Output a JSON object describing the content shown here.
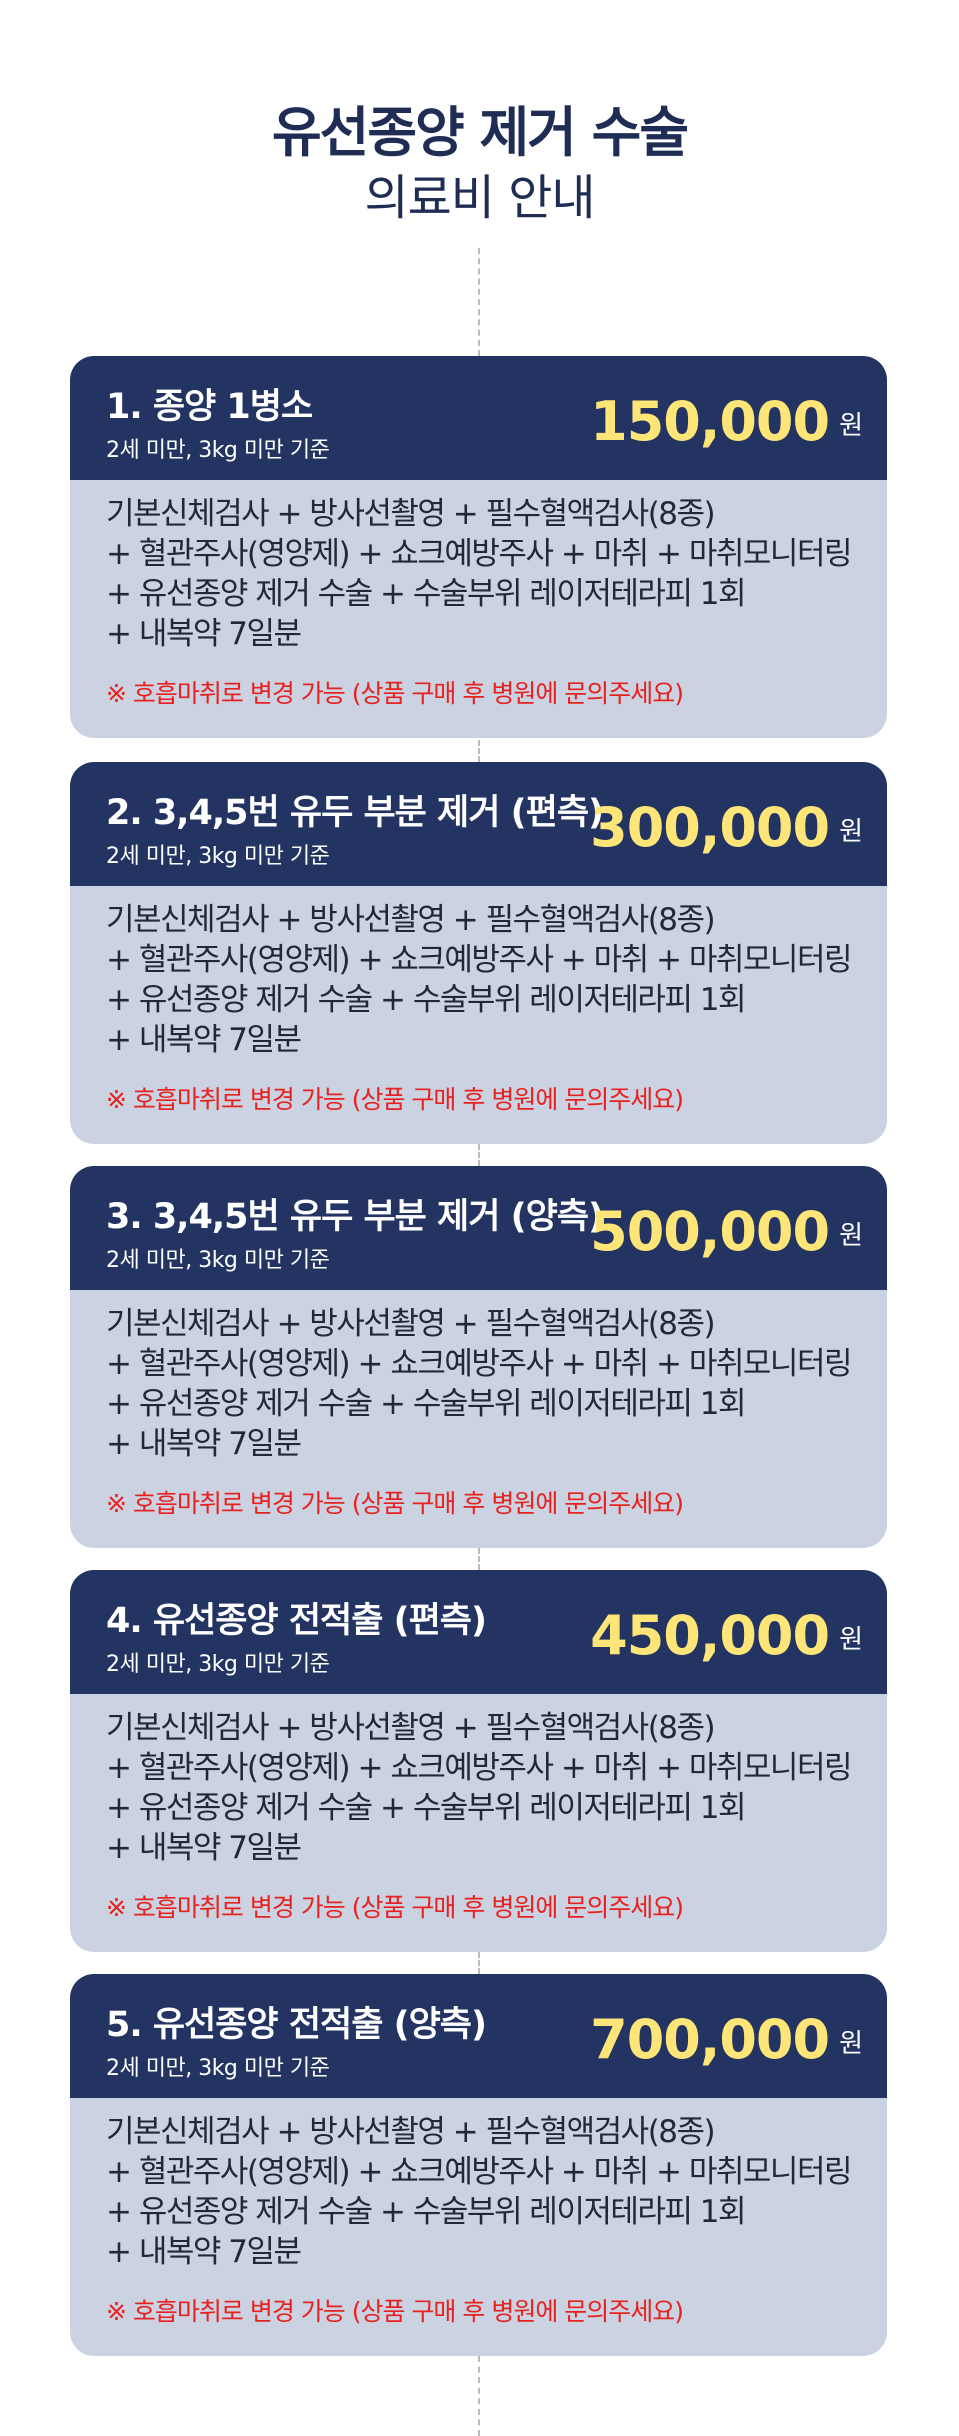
{
  "header": {
    "title": "유선종양 제거 수술",
    "subtitle": "의료비 안내"
  },
  "items": [
    {
      "title": "1. 종양 1병소",
      "condition": "2세 미만, 3kg 미만 기준",
      "price": "150,000",
      "unit": "원",
      "lines": [
        "기본신체검사 + 방사선촬영 + 필수혈액검사(8종)",
        "+ 혈관주사(영양제) + 쇼크예방주사 + 마취 + 마취모니터링",
        "+ 유선종양 제거 수술 + 수술부위 레이저테라피 1회",
        "+ 내복약 7일분"
      ],
      "note": "※ 호흡마취로 변경 가능 (상품 구매 후 병원에 문의주세요)"
    },
    {
      "title": "2. 3,4,5번 유두 부분 제거 (편측)",
      "condition": "2세 미만, 3kg 미만 기준",
      "price": "300,000",
      "unit": "원",
      "lines": [
        "기본신체검사 + 방사선촬영 + 필수혈액검사(8종)",
        "+ 혈관주사(영양제) + 쇼크예방주사 + 마취 + 마취모니터링",
        "+ 유선종양 제거 수술 + 수술부위 레이저테라피 1회",
        "+ 내복약 7일분"
      ],
      "note": "※ 호흡마취로 변경 가능 (상품 구매 후 병원에 문의주세요)"
    },
    {
      "title": "3. 3,4,5번 유두 부분 제거 (양측)",
      "condition": "2세 미만, 3kg 미만 기준",
      "price": "500,000",
      "unit": "원",
      "lines": [
        "기본신체검사 + 방사선촬영 + 필수혈액검사(8종)",
        "+ 혈관주사(영양제) + 쇼크예방주사 + 마취 + 마취모니터링",
        "+ 유선종양 제거 수술 + 수술부위 레이저테라피 1회",
        "+ 내복약 7일분"
      ],
      "note": "※ 호흡마취로 변경 가능 (상품 구매 후 병원에 문의주세요)"
    },
    {
      "title": "4. 유선종양 전적출 (편측)",
      "condition": "2세 미만, 3kg 미만 기준",
      "price": "450,000",
      "unit": "원",
      "lines": [
        "기본신체검사 + 방사선촬영 + 필수혈액검사(8종)",
        "+ 혈관주사(영양제) + 쇼크예방주사 + 마취 + 마취모니터링",
        "+ 유선종양 제거 수술 + 수술부위 레이저테라피 1회",
        "+ 내복약 7일분"
      ],
      "note": "※ 호흡마취로 변경 가능 (상품 구매 후 병원에 문의주세요)"
    },
    {
      "title": "5. 유선종양 전적출 (양측)",
      "condition": "2세 미만, 3kg 미만 기준",
      "price": "700,000",
      "unit": "원",
      "lines": [
        "기본신체검사 + 방사선촬영 + 필수혈액검사(8종)",
        "+ 혈관주사(영양제) + 쇼크예방주사 + 마취 + 마취모니터링",
        "+ 유선종양 제거 수술 + 수술부위 레이저테라피 1회",
        "+ 내복약 7일분"
      ],
      "note": "※ 호흡마취로 변경 가능 (상품 구매 후 병원에 문의주세요)"
    }
  ]
}
